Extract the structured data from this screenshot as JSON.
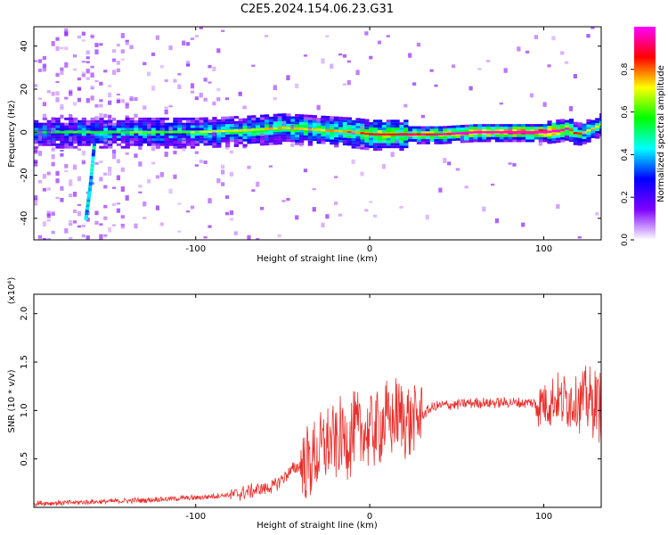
{
  "title": "C2E5.2024.154.06.23.G31",
  "colors": {
    "snr_line": "#e8302c",
    "frame": "#000000",
    "background": "#ffffff"
  },
  "chart_data": [
    {
      "type": "heatmap",
      "title": "C2E5.2024.154.06.23.G31",
      "xlabel": "Height of straight line (km)",
      "ylabel": "Frequency (Hz)",
      "xlim": [
        -193,
        133
      ],
      "ylim": [
        -50,
        49
      ],
      "x_ticks": [
        "-100",
        "0",
        "100"
      ],
      "y_ticks": [
        "-40",
        "-20",
        "0",
        "20",
        "40"
      ],
      "colorbar": {
        "label": "Normalized spectral amplitude",
        "range": [
          0,
          1
        ],
        "ticks": [
          "0.0",
          "0.2",
          "0.4",
          "0.6",
          "0.8"
        ],
        "colormap": [
          "#ffffff",
          "#7f00ff",
          "#0000ff",
          "#00ffff",
          "#00ff00",
          "#ffff00",
          "#ff0000",
          "#ff00ff"
        ]
      },
      "carrier_track": {
        "x": [
          -193,
          -150,
          -100,
          -70,
          -50,
          -30,
          -10,
          0,
          20,
          40,
          60,
          80,
          100,
          110,
          113,
          118,
          122,
          128,
          133
        ],
        "frequency": [
          0,
          0,
          0,
          1,
          2,
          1,
          0,
          -1,
          -1,
          -1,
          0,
          0,
          0,
          1,
          2,
          -1,
          0,
          2,
          4
        ],
        "amplitude": [
          0.35,
          0.4,
          0.45,
          0.5,
          0.55,
          0.55,
          0.6,
          0.65,
          0.7,
          0.75,
          0.8,
          0.85,
          0.9,
          0.8,
          0.7,
          0.6,
          0.55,
          0.5,
          0.45
        ]
      },
      "low_height_chirp": {
        "x": [
          -163,
          -162,
          -161,
          -160,
          -159,
          -158
        ],
        "frequency": [
          -40,
          -34,
          -28,
          -21,
          -12,
          -4
        ]
      }
    },
    {
      "type": "line",
      "xlabel": "Height of straight line (km)",
      "ylabel": "SNR (10 * v/v)",
      "y_multiplier": "(x10⁴)",
      "xlim": [
        -193,
        133
      ],
      "ylim": [
        0,
        2.2
      ],
      "x_ticks": [
        "-100",
        "0",
        "100"
      ],
      "y_ticks": [
        "0.5",
        "1.0",
        "1.5",
        "2.0"
      ],
      "series": [
        {
          "x": [
            -193,
            -150,
            -100,
            -75,
            -55,
            -45,
            -35,
            -25,
            -15,
            -5,
            5,
            15,
            25,
            30,
            35,
            40,
            60,
            80,
            95,
            105,
            115,
            125,
            133
          ],
          "values": [
            0.04,
            0.06,
            0.1,
            0.14,
            0.22,
            0.38,
            0.48,
            0.62,
            0.72,
            0.78,
            0.85,
            0.92,
            0.88,
            0.95,
            1.02,
            1.05,
            1.08,
            1.08,
            1.08,
            1.1,
            1.12,
            1.1,
            1.05
          ]
        }
      ]
    }
  ]
}
